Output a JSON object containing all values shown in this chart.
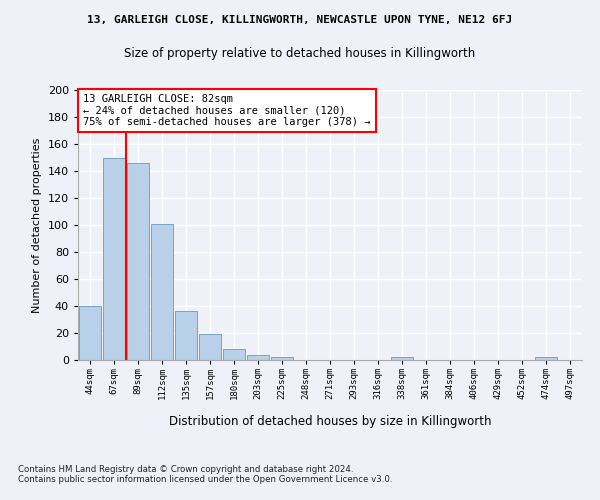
{
  "title_line1": "13, GARLEIGH CLOSE, KILLINGWORTH, NEWCASTLE UPON TYNE, NE12 6FJ",
  "title_line2": "Size of property relative to detached houses in Killingworth",
  "xlabel": "Distribution of detached houses by size in Killingworth",
  "ylabel": "Number of detached properties",
  "categories": [
    "44sqm",
    "67sqm",
    "89sqm",
    "112sqm",
    "135sqm",
    "157sqm",
    "180sqm",
    "203sqm",
    "225sqm",
    "248sqm",
    "271sqm",
    "293sqm",
    "316sqm",
    "338sqm",
    "361sqm",
    "384sqm",
    "406sqm",
    "429sqm",
    "452sqm",
    "474sqm",
    "497sqm"
  ],
  "values": [
    40,
    150,
    146,
    101,
    36,
    19,
    8,
    4,
    2,
    0,
    0,
    0,
    0,
    2,
    0,
    0,
    0,
    0,
    0,
    2,
    0
  ],
  "bar_color": "#b8d0e8",
  "bar_edge_color": "#6699cc",
  "vline_x_index": 1.5,
  "vline_color": "red",
  "annotation_text": "13 GARLEIGH CLOSE: 82sqm\n← 24% of detached houses are smaller (120)\n75% of semi-detached houses are larger (378) →",
  "annotation_box_color": "white",
  "annotation_box_edge_color": "red",
  "ylim": [
    0,
    200
  ],
  "yticks": [
    0,
    20,
    40,
    60,
    80,
    100,
    120,
    140,
    160,
    180,
    200
  ],
  "footnote": "Contains HM Land Registry data © Crown copyright and database right 2024.\nContains public sector information licensed under the Open Government Licence v3.0.",
  "background_color": "#eef2f8",
  "grid_color": "white"
}
